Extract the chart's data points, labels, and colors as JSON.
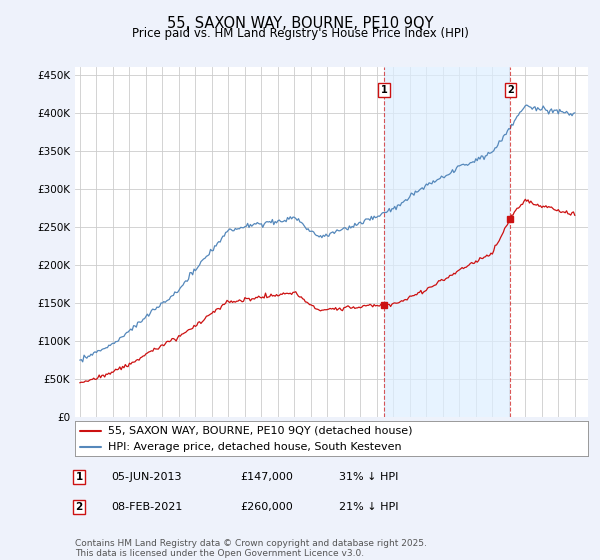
{
  "title": "55, SAXON WAY, BOURNE, PE10 9QY",
  "subtitle": "Price paid vs. HM Land Registry's House Price Index (HPI)",
  "ylabel_ticks": [
    "£0",
    "£50K",
    "£100K",
    "£150K",
    "£200K",
    "£250K",
    "£300K",
    "£350K",
    "£400K",
    "£450K"
  ],
  "ytick_values": [
    0,
    50000,
    100000,
    150000,
    200000,
    250000,
    300000,
    350000,
    400000,
    450000
  ],
  "ylim": [
    0,
    460000
  ],
  "xlim_start": 1994.7,
  "xlim_end": 2025.8,
  "vline1_x": 2013.43,
  "vline2_x": 2021.1,
  "marker1_red_y": 147000,
  "marker2_red_y": 260000,
  "annotation1": {
    "num": "1",
    "date": "05-JUN-2013",
    "price": "£147,000",
    "note": "31% ↓ HPI"
  },
  "annotation2": {
    "num": "2",
    "date": "08-FEB-2021",
    "price": "£260,000",
    "note": "21% ↓ HPI"
  },
  "legend1_label": "55, SAXON WAY, BOURNE, PE10 9QY (detached house)",
  "legend2_label": "HPI: Average price, detached house, South Kesteven",
  "footer": "Contains HM Land Registry data © Crown copyright and database right 2025.\nThis data is licensed under the Open Government Licence v3.0.",
  "line_red_color": "#cc1111",
  "line_blue_color": "#5588bb",
  "shade_color": "#ddeeff",
  "background_color": "#eef2fb",
  "plot_bg_color": "#ffffff",
  "grid_color": "#cccccc",
  "title_fontsize": 10.5,
  "subtitle_fontsize": 8.5,
  "tick_fontsize": 7.5,
  "legend_fontsize": 8.0,
  "footer_fontsize": 6.5
}
